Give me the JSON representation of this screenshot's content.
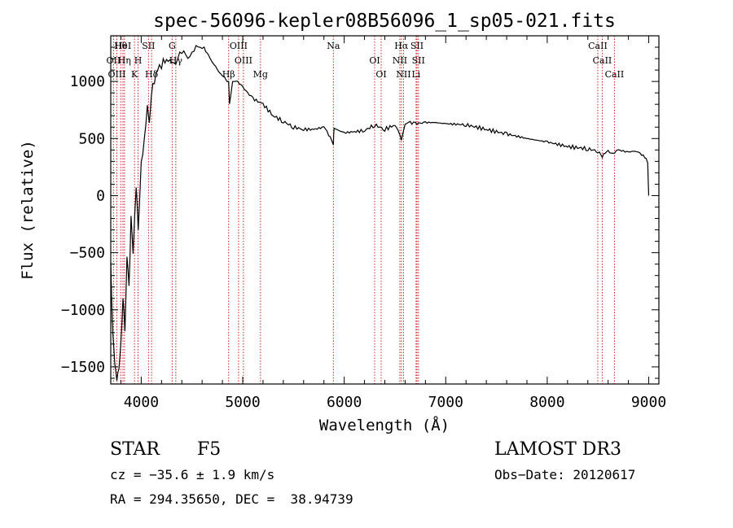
{
  "chart_data": {
    "type": "line",
    "title": "spec-56096-kepler08B56096_1_sp05-021.fits",
    "xlabel": "Wavelength (Å)",
    "ylabel": "Flux (relative)",
    "xlim": [
      3700,
      9100
    ],
    "ylim": [
      -1650,
      1400
    ],
    "x_ticks": [
      4000,
      5000,
      6000,
      7000,
      8000,
      9000
    ],
    "x_tick_labels": [
      "4000",
      "5000",
      "6000",
      "7000",
      "8000",
      "9000"
    ],
    "y_ticks": [
      -1500,
      -1000,
      -500,
      0,
      500,
      1000
    ],
    "y_tick_labels": [
      "−1500",
      "−1000",
      "−500",
      "0",
      "500",
      "1000"
    ],
    "series": [
      {
        "name": "spectrum",
        "x": [
          3700,
          3720,
          3740,
          3760,
          3780,
          3800,
          3820,
          3840,
          3860,
          3880,
          3900,
          3920,
          3950,
          3970,
          4000,
          4030,
          4060,
          4080,
          4100,
          4130,
          4160,
          4200,
          4250,
          4300,
          4340,
          4380,
          4420,
          4460,
          4500,
          4540,
          4580,
          4620,
          4680,
          4750,
          4800,
          4861,
          4870,
          4900,
          4950,
          5000,
          5100,
          5200,
          5300,
          5400,
          5500,
          5600,
          5700,
          5800,
          5893,
          5900,
          6000,
          6100,
          6200,
          6300,
          6400,
          6500,
          6563,
          6600,
          6650,
          6700,
          6800,
          6900,
          7000,
          7200,
          7400,
          7600,
          7800,
          8000,
          8200,
          8400,
          8500,
          8542,
          8600,
          8662,
          8700,
          8800,
          8850,
          8900,
          8960,
          8990,
          9000
        ],
        "y": [
          -600,
          -1200,
          -1500,
          -1600,
          -1500,
          -1300,
          -900,
          -1200,
          -500,
          -800,
          -200,
          -500,
          100,
          -300,
          300,
          500,
          800,
          600,
          900,
          1000,
          1100,
          1150,
          1200,
          1150,
          1150,
          1250,
          1250,
          1200,
          1250,
          1300,
          1300,
          1300,
          1200,
          1100,
          1050,
          1000,
          800,
          1000,
          1000,
          950,
          850,
          800,
          700,
          650,
          600,
          580,
          580,
          600,
          450,
          590,
          550,
          560,
          570,
          620,
          580,
          620,
          500,
          630,
          640,
          630,
          640,
          640,
          630,
          620,
          580,
          540,
          500,
          470,
          430,
          410,
          390,
          350,
          390,
          360,
          400,
          380,
          390,
          380,
          350,
          300,
          0
        ]
      }
    ],
    "line_markers": [
      {
        "label": "Hθ",
        "x": 3798
      },
      {
        "label": "OII",
        "x": 3727
      },
      {
        "label": "OIII",
        "x": 3760
      },
      {
        "label": "HeI",
        "x": 3820
      },
      {
        "label": "Hη",
        "x": 3835
      },
      {
        "label": "K",
        "x": 3934
      },
      {
        "label": "SII",
        "x": 4072
      },
      {
        "label": "H",
        "x": 3969
      },
      {
        "label": "Hδ",
        "x": 4102
      },
      {
        "label": "G",
        "x": 4305
      },
      {
        "label": "Hγ",
        "x": 4341
      },
      {
        "label": "Hβ",
        "x": 4861
      },
      {
        "label": "OIII",
        "x": 4959
      },
      {
        "label": "OIII",
        "x": 5007
      },
      {
        "label": "Mg",
        "x": 5175
      },
      {
        "label": "Na",
        "x": 5893
      },
      {
        "label": "OI",
        "x": 6300
      },
      {
        "label": "OI",
        "x": 6364
      },
      {
        "label": "Hα",
        "x": 6563
      },
      {
        "label": "NII",
        "x": 6548
      },
      {
        "label": "NII",
        "x": 6584
      },
      {
        "label": "SII",
        "x": 6717
      },
      {
        "label": "SII",
        "x": 6731
      },
      {
        "label": "Li",
        "x": 6708
      },
      {
        "label": "CaII",
        "x": 8498
      },
      {
        "label": "CaII",
        "x": 8542
      },
      {
        "label": "CaII",
        "x": 8662
      }
    ],
    "grid": false,
    "legend": "none"
  },
  "info": {
    "object_type": "STAR",
    "subclass": "F5",
    "survey": "LAMOST DR3",
    "redshift": "cz = −35.6 ± 1.9 km/s",
    "obs_date": "Obs−Date: 20120617",
    "coords": "RA = 294.35650, DEC =  38.94739"
  }
}
